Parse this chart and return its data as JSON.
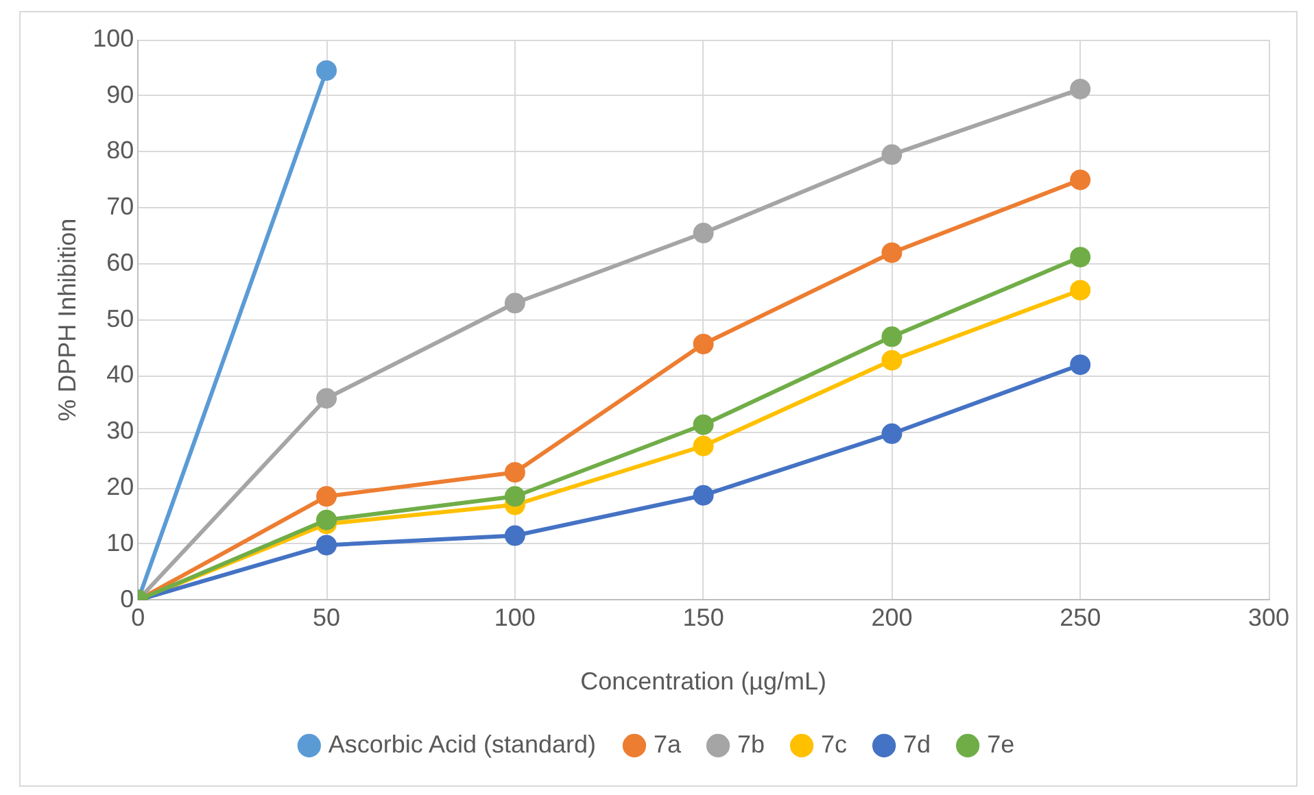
{
  "chart_data": {
    "type": "line",
    "xlabel": "Concentration (µg/mL)",
    "ylabel": "% DPPH Inhibition",
    "xlim": [
      0,
      300
    ],
    "xticks": [
      0,
      50,
      100,
      150,
      200,
      250,
      300
    ],
    "ylim": [
      0,
      100
    ],
    "yticks": [
      0,
      10,
      20,
      30,
      40,
      50,
      60,
      70,
      80,
      90,
      100
    ],
    "grid": true,
    "legend": "bottom",
    "marker": "circle",
    "line_style": "solid",
    "series": [
      {
        "name": "Ascorbic Acid (standard)",
        "color": "#5b9bd5",
        "x": [
          0,
          50
        ],
        "values": [
          0,
          94.5
        ]
      },
      {
        "name": "7a",
        "color": "#ed7d31",
        "x": [
          0,
          50,
          100,
          150,
          200,
          250
        ],
        "values": [
          0,
          18.5,
          22.8,
          45.7,
          62,
          75
        ]
      },
      {
        "name": "7b",
        "color": "#a5a5a5",
        "x": [
          0,
          50,
          100,
          150,
          200,
          250
        ],
        "values": [
          0,
          36,
          53,
          65.5,
          79.5,
          91.2
        ]
      },
      {
        "name": "7c",
        "color": "#ffc000",
        "x": [
          0,
          50,
          100,
          150,
          200,
          250
        ],
        "values": [
          0,
          13.6,
          17,
          27.5,
          42.8,
          55.3
        ]
      },
      {
        "name": "7d",
        "color": "#4472c4",
        "x": [
          0,
          50,
          100,
          150,
          200,
          250
        ],
        "values": [
          0,
          9.8,
          11.5,
          18.7,
          29.7,
          42
        ]
      },
      {
        "name": "7e",
        "color": "#70ad47",
        "x": [
          0,
          50,
          100,
          150,
          200,
          250
        ],
        "values": [
          0,
          14.3,
          18.5,
          31.3,
          47,
          61.2
        ]
      }
    ]
  }
}
